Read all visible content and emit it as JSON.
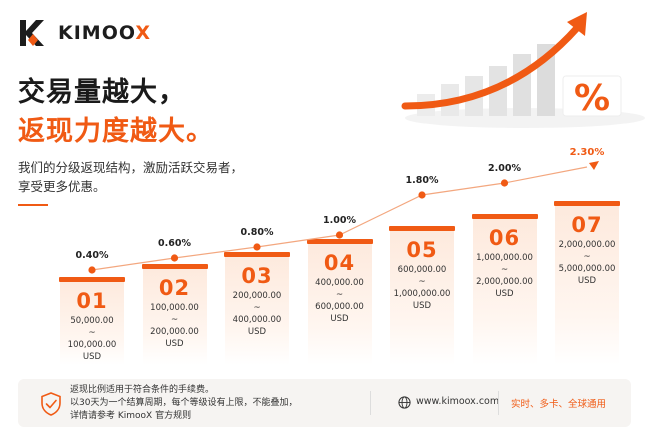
{
  "brand": {
    "name_prefix": "KIMOO",
    "name_suffix": "X"
  },
  "headline": {
    "line1": "交易量越大，",
    "line2": "返现力度越大。"
  },
  "subtext": {
    "line1": "我们的分级返现结构，激励活跃交易者，",
    "line2": "享受更多优惠。"
  },
  "illustration": {
    "percent_symbol": "%"
  },
  "colors": {
    "accent": "#f05a14",
    "tier_bg": "#fde9dc",
    "footer_bg": "#f6f4f2"
  },
  "chart_data": {
    "type": "line",
    "x": [
      "01",
      "02",
      "03",
      "04",
      "05",
      "06",
      "07"
    ],
    "series": [
      {
        "values": [
          0.4,
          0.6,
          0.8,
          1.0,
          1.8,
          2.0,
          2.3
        ]
      }
    ],
    "value_labels": [
      "0.40%",
      "0.60%",
      "0.80%",
      "1.00%",
      "1.80%",
      "2.00%",
      "2.30%"
    ],
    "tiers": [
      {
        "num": "01",
        "from": "50,000.00",
        "sep": "~",
        "to": "100,000.00",
        "unit": "USD"
      },
      {
        "num": "02",
        "from": "100,000.00",
        "sep": "~",
        "to": "200,000.00",
        "unit": "USD"
      },
      {
        "num": "03",
        "from": "200,000.00",
        "sep": "~",
        "to": "400,000.00",
        "unit": "USD"
      },
      {
        "num": "04",
        "from": "400,000.00",
        "sep": "~",
        "to": "600,000.00",
        "unit": "USD"
      },
      {
        "num": "05",
        "from": "600,000.00",
        "sep": "~",
        "to": "1,000,000.00",
        "unit": "USD"
      },
      {
        "num": "06",
        "from": "1,000,000.00",
        "sep": "~",
        "to": "2,000,000.00",
        "unit": "USD"
      },
      {
        "num": "07",
        "from": "2,000,000.00",
        "sep": "~",
        "to": "5,000,000.00",
        "unit": "USD"
      }
    ]
  },
  "footer": {
    "note_line1": "返现比例适用于符合条件的手续费。",
    "note_line2": "以30天为一个结算周期，每个等级设有上限，不能叠加，",
    "note_line3": "详情请参考 KimooX 官方规则",
    "website": "www.kimoox.com",
    "slogan": "实时、多卡、全球通用"
  }
}
